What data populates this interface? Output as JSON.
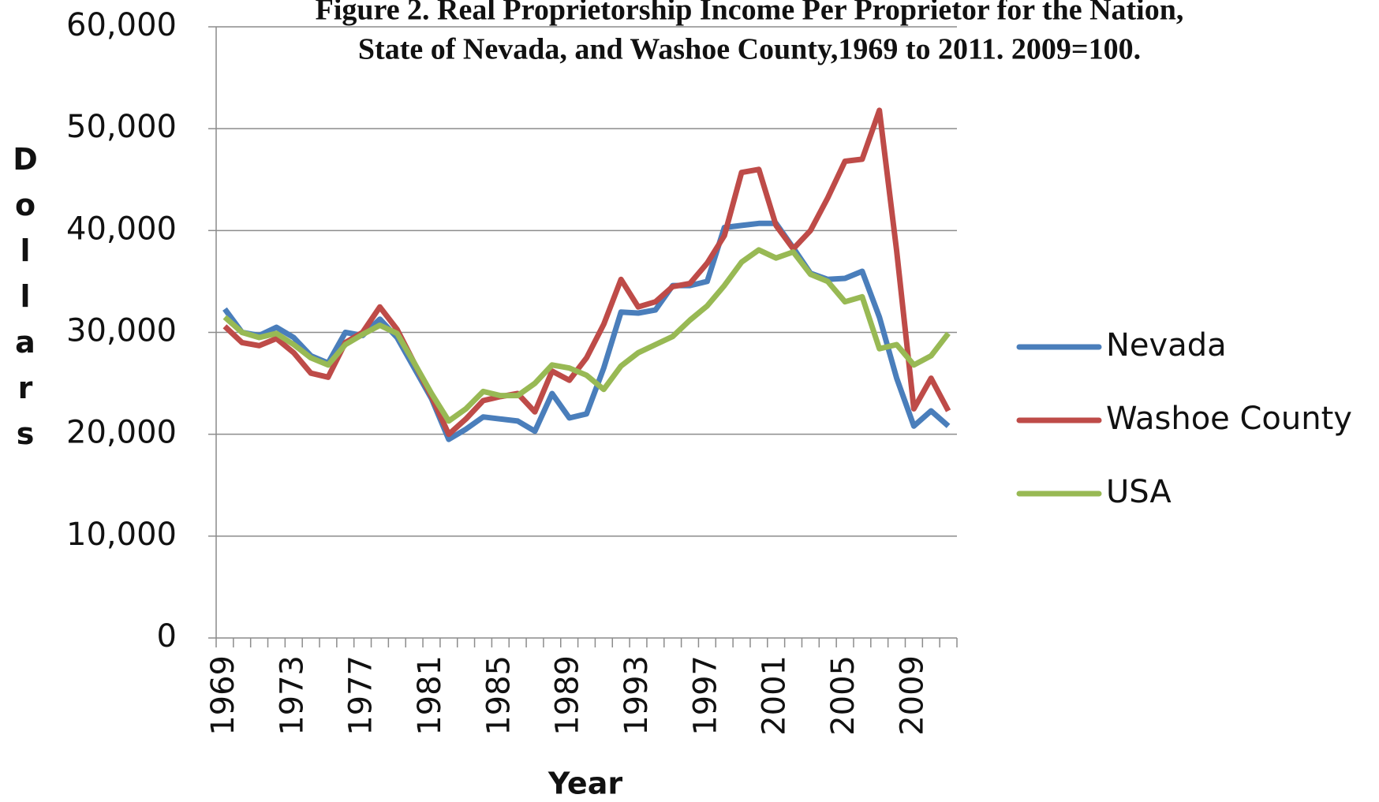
{
  "chart_data": {
    "type": "line",
    "title": [
      "Figure 2. Real Proprietorship Income Per Proprietor for the Nation,",
      "State of Nevada, and Washoe County,1969 to 2011. 2009=100."
    ],
    "x_label": "Year",
    "y_label": "Dollars",
    "categories": [
      "1969",
      null,
      null,
      null,
      "1973",
      null,
      null,
      null,
      "1977",
      null,
      null,
      null,
      "1981",
      null,
      null,
      null,
      "1985",
      null,
      null,
      null,
      "1989",
      null,
      null,
      null,
      "1993",
      null,
      null,
      null,
      "1997",
      null,
      null,
      null,
      "2001",
      null,
      null,
      null,
      "2005",
      null,
      null,
      null,
      "2009",
      null,
      null
    ],
    "ylim": [
      0,
      60000
    ],
    "yticks": [
      0,
      {
        "value": 10000,
        "label": "10,000"
      },
      {
        "value": 20000,
        "label": "20,000"
      },
      {
        "value": 30000,
        "label": "30,000"
      },
      {
        "value": 40000,
        "label": "40,000"
      },
      {
        "value": 50000,
        "label": "50,000"
      },
      {
        "value": 60000,
        "label": "60,000"
      }
    ],
    "grid": true,
    "legend": "right",
    "series": [
      {
        "name": "Nevada",
        "color": "#4a7ebb",
        "values": [
          32300,
          30000,
          29700,
          30500,
          29500,
          27700,
          27000,
          30000,
          29700,
          31300,
          29500,
          26500,
          23500,
          19500,
          20500,
          21700,
          21500,
          21300,
          20300,
          24000,
          21600,
          22000,
          26500,
          32000,
          31900,
          32200,
          34600,
          34600,
          35000,
          40300,
          40500,
          40700,
          40700,
          38300,
          35800,
          35200,
          35300,
          36000,
          31500,
          25500,
          20800,
          22300,
          20800
        ]
      },
      {
        "name": "Washoe County",
        "color": "#be4b48",
        "values": [
          30600,
          29000,
          28700,
          29400,
          28000,
          26000,
          25600,
          29000,
          30000,
          32500,
          30300,
          27000,
          23700,
          20000,
          21500,
          23300,
          23700,
          24000,
          22200,
          26200,
          25300,
          27500,
          30800,
          35200,
          32500,
          33000,
          34500,
          34800,
          36800,
          39500,
          45700,
          46000,
          40500,
          38200,
          40000,
          43200,
          46800,
          47000,
          51800,
          38000,
          22500,
          25500,
          22300
        ]
      },
      {
        "name": "USA",
        "color": "#98b954",
        "values": [
          31500,
          30000,
          29500,
          29900,
          28800,
          27500,
          26800,
          28800,
          29800,
          30700,
          29900,
          27000,
          24000,
          21300,
          22500,
          24200,
          23800,
          23800,
          25000,
          26800,
          26500,
          25800,
          24400,
          26700,
          28000,
          28800,
          29600,
          31200,
          32600,
          34600,
          36900,
          38100,
          37300,
          37900,
          35700,
          35000,
          33000,
          33500,
          28400,
          28800,
          26800,
          27700,
          29900
        ]
      }
    ]
  }
}
